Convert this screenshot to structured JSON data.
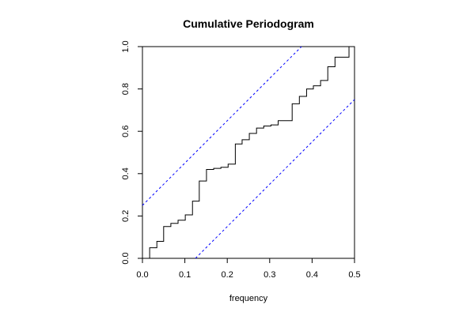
{
  "chart_data": {
    "type": "line",
    "title": "Cumulative Periodogram",
    "xlabel": "frequency",
    "ylabel": "",
    "xlim": [
      0,
      0.5
    ],
    "ylim": [
      0,
      1
    ],
    "xticks": [
      "0.0",
      "0.1",
      "0.2",
      "0.3",
      "0.4",
      "0.5"
    ],
    "yticks": [
      "0.0",
      "0.2",
      "0.4",
      "0.6",
      "0.8",
      "1.0"
    ],
    "grid": false,
    "series": [
      {
        "style": "step",
        "color": "#000000",
        "x": [
          0.0,
          0.017,
          0.034,
          0.05,
          0.067,
          0.084,
          0.101,
          0.118,
          0.134,
          0.151,
          0.168,
          0.185,
          0.202,
          0.219,
          0.235,
          0.252,
          0.269,
          0.286,
          0.303,
          0.32,
          0.336,
          0.353,
          0.37,
          0.387,
          0.403,
          0.42,
          0.437,
          0.454,
          0.47,
          0.487,
          0.5
        ],
        "y": [
          0.0,
          0.05,
          0.08,
          0.15,
          0.165,
          0.18,
          0.205,
          0.27,
          0.365,
          0.42,
          0.425,
          0.43,
          0.445,
          0.54,
          0.56,
          0.59,
          0.615,
          0.625,
          0.63,
          0.65,
          0.65,
          0.73,
          0.765,
          0.8,
          0.815,
          0.84,
          0.905,
          0.95,
          0.95,
          1.0,
          1.0
        ]
      },
      {
        "style": "dashed",
        "color": "#0000ff",
        "x": [
          0.0,
          0.375
        ],
        "y": [
          0.25,
          1.0
        ]
      },
      {
        "style": "dashed",
        "color": "#0000ff",
        "x": [
          0.125,
          0.5
        ],
        "y": [
          0.0,
          0.75
        ]
      }
    ]
  }
}
